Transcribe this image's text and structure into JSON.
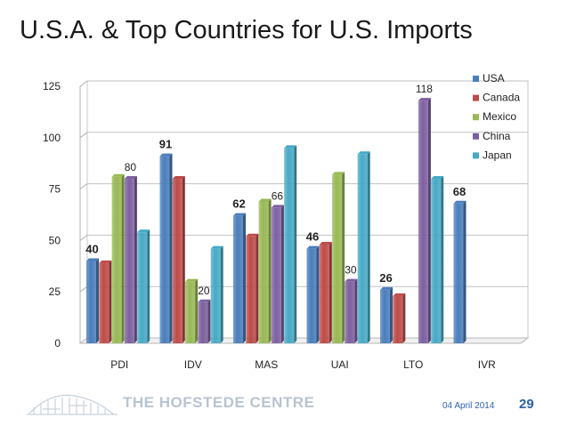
{
  "slide": {
    "title": "U.S.A. & Top Countries for U.S. Imports",
    "brand": "THE HOFSTEDE CENTRE",
    "date": "04 April 2014",
    "page_number": "29"
  },
  "chart_data": {
    "type": "bar",
    "title": "",
    "xlabel": "",
    "ylabel": "",
    "ylim": [
      0,
      125
    ],
    "yticks": [
      0,
      25,
      50,
      75,
      100,
      125
    ],
    "categories": [
      "PDI",
      "IDV",
      "MAS",
      "UAI",
      "LTO",
      "IVR"
    ],
    "series": [
      {
        "name": "USA",
        "color": "#4a7ebb",
        "values": [
          40,
          91,
          62,
          46,
          26,
          68
        ]
      },
      {
        "name": "Canada",
        "color": "#be4b48",
        "values": [
          39,
          80,
          52,
          48,
          23,
          null
        ]
      },
      {
        "name": "Mexico",
        "color": "#98b954",
        "values": [
          81,
          30,
          69,
          82,
          null,
          null
        ]
      },
      {
        "name": "China",
        "color": "#7d60a0",
        "values": [
          80,
          20,
          66,
          30,
          118,
          null
        ]
      },
      {
        "name": "Japan",
        "color": "#46aac5",
        "values": [
          54,
          46,
          95,
          92,
          80,
          null
        ]
      }
    ],
    "data_labels": [
      {
        "series": 0,
        "category": 0,
        "text": "40",
        "bold": true
      },
      {
        "series": 0,
        "category": 1,
        "text": "91",
        "bold": true
      },
      {
        "series": 0,
        "category": 2,
        "text": "62",
        "bold": true
      },
      {
        "series": 0,
        "category": 3,
        "text": "46",
        "bold": true
      },
      {
        "series": 0,
        "category": 4,
        "text": "26",
        "bold": true
      },
      {
        "series": 0,
        "category": 5,
        "text": "68",
        "bold": true
      },
      {
        "series": 3,
        "category": 0,
        "text": "80",
        "bold": false
      },
      {
        "series": 3,
        "category": 1,
        "text": "20",
        "bold": false
      },
      {
        "series": 3,
        "category": 2,
        "text": "66",
        "bold": false
      },
      {
        "series": 3,
        "category": 3,
        "text": "30",
        "bold": false
      },
      {
        "series": 3,
        "category": 4,
        "text": "118",
        "bold": false
      }
    ],
    "legend": "right",
    "grid": true
  }
}
